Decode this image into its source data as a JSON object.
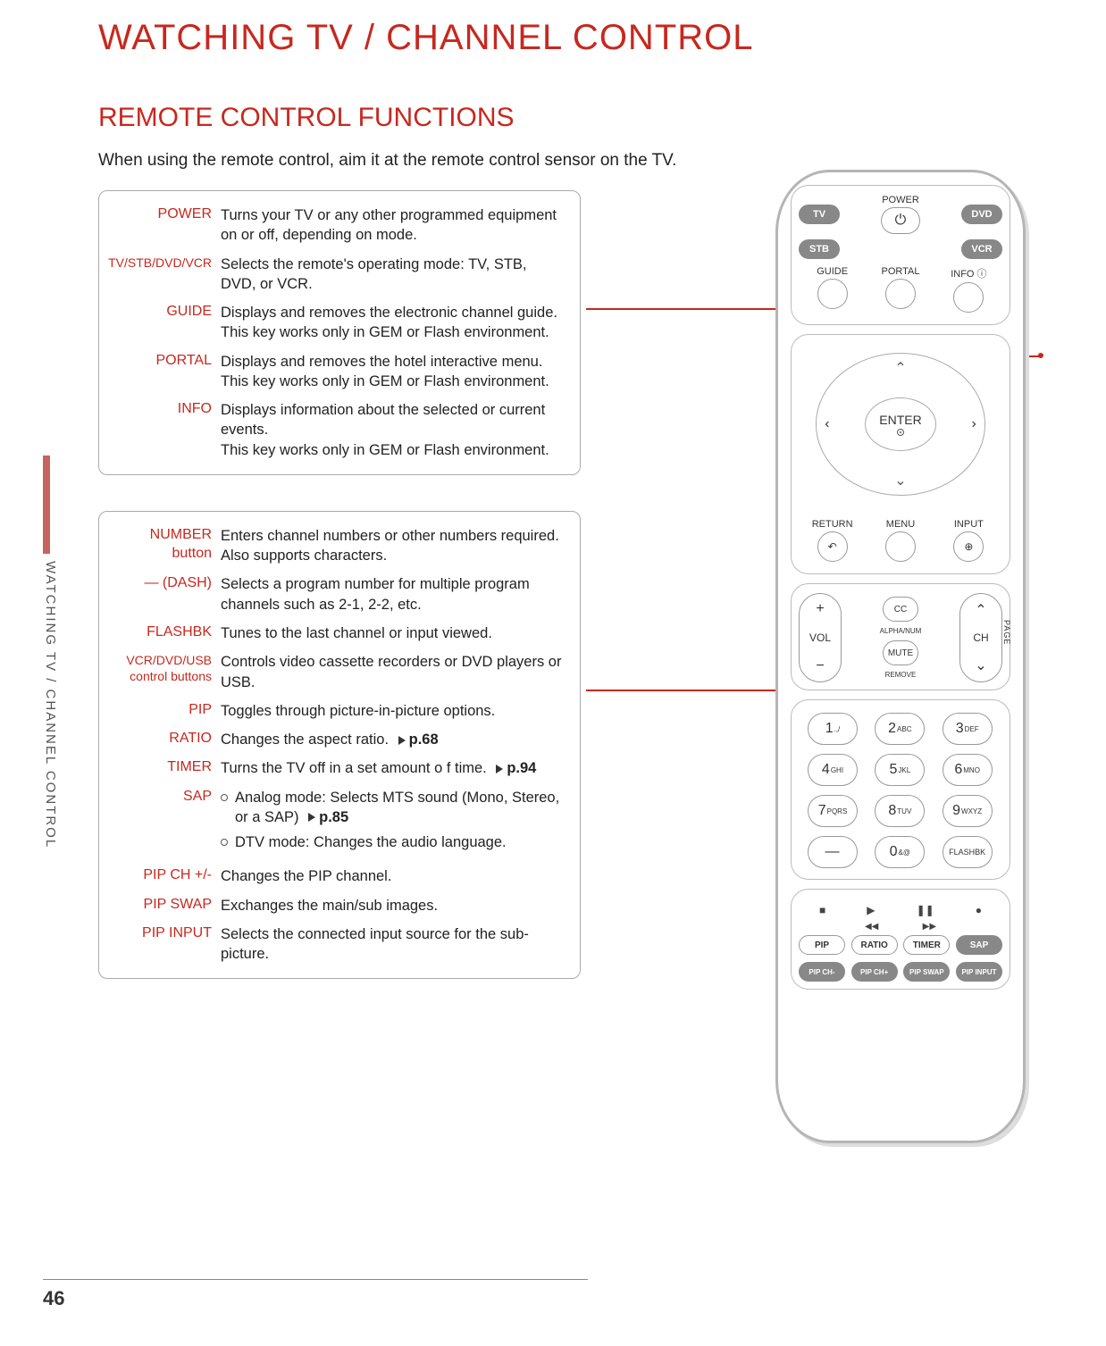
{
  "page_title": "WATCHING TV / CHANNEL CONTROL",
  "section_title": "REMOTE CONTROL FUNCTIONS",
  "intro": "When using the remote control, aim it at the remote control sensor on the TV.",
  "side_tab": "WATCHING TV / CHANNEL CONTROL",
  "page_number": "46",
  "box1": [
    {
      "label": "POWER",
      "desc": "Turns your TV or any other programmed equipment  on or off, depending on mode."
    },
    {
      "label": "TV/STB/DVD/VCR",
      "small": true,
      "desc": "Selects the remote's operating mode: TV, STB, DVD, or VCR."
    },
    {
      "label": "GUIDE",
      "desc": "Displays and removes the electronic channel guide.\nThis key works only in GEM or Flash environment."
    },
    {
      "label": "PORTAL",
      "desc": "Displays and removes the hotel interactive menu.\nThis key works only in GEM or Flash environment."
    },
    {
      "label": "INFO",
      "desc": "Displays information about the selected or current events.\nThis key works only in GEM or Flash environment."
    }
  ],
  "box2": [
    {
      "label": "NUMBER\nbutton",
      "desc": "Enters channel numbers or other numbers required. Also supports characters."
    },
    {
      "label": "— (DASH)",
      "desc": "Selects a program number for multiple program channels such as 2-1, 2-2, etc."
    },
    {
      "label": "FLASHBK",
      "desc": "Tunes to the last channel or input viewed."
    },
    {
      "label": "VCR/DVD/USB\ncontrol buttons",
      "small": true,
      "desc": "Controls video cassette recorders or DVD players or USB."
    },
    {
      "label": "PIP",
      "desc": "Toggles through picture-in-picture options."
    },
    {
      "label": "RATIO",
      "desc": "Changes the aspect ratio. ",
      "ref": "p.68"
    },
    {
      "label": "TIMER",
      "desc": "Turns the TV off in a set amount o f time. ",
      "ref": "p.94"
    },
    {
      "label": "SAP",
      "bullets": [
        {
          "text": "Analog mode: Selects MTS sound (Mono, Stereo, or a SAP) ",
          "ref": "p.85"
        },
        {
          "text": "DTV mode: Changes the audio language."
        }
      ]
    },
    {
      "label": "PIP CH +/-",
      "desc": "Changes the PIP channel."
    },
    {
      "label": "PIP SWAP",
      "desc": "Exchanges the main/sub images."
    },
    {
      "label": "PIP INPUT",
      "desc": "Selects the connected input source for the sub-picture."
    }
  ],
  "remote": {
    "power": "POWER",
    "mode": [
      "TV",
      "DVD",
      "STB",
      "VCR"
    ],
    "gpi": [
      "GUIDE",
      "PORTAL",
      "INFO ⓘ"
    ],
    "enter": "ENTER",
    "rmi": [
      "RETURN",
      "MENU",
      "INPUT"
    ],
    "vol": "VOL",
    "ch": "CH",
    "page": "PAGE",
    "cc": "CC",
    "alphanum": "ALPHA/NUM",
    "mute": "MUTE",
    "remove": "REMOVE",
    "keys": [
      {
        "n": "1",
        "s": ".,/"
      },
      {
        "n": "2",
        "s": "ABC"
      },
      {
        "n": "3",
        "s": "DEF"
      },
      {
        "n": "4",
        "s": "GHI"
      },
      {
        "n": "5",
        "s": "JKL"
      },
      {
        "n": "6",
        "s": "MNO"
      },
      {
        "n": "7",
        "s": "PQRS"
      },
      {
        "n": "8",
        "s": "TUV"
      },
      {
        "n": "9",
        "s": "WXYZ"
      },
      {
        "n": "—",
        "s": ""
      },
      {
        "n": "0",
        "s": "&@"
      },
      {
        "n": "FLASHBK",
        "s": "",
        "flash": true
      }
    ],
    "func": [
      "PIP",
      "RATIO",
      "TIMER",
      "SAP"
    ],
    "pip": [
      "PIP CH-",
      "PIP CH+",
      "PIP SWAP",
      "PIP INPUT"
    ]
  }
}
